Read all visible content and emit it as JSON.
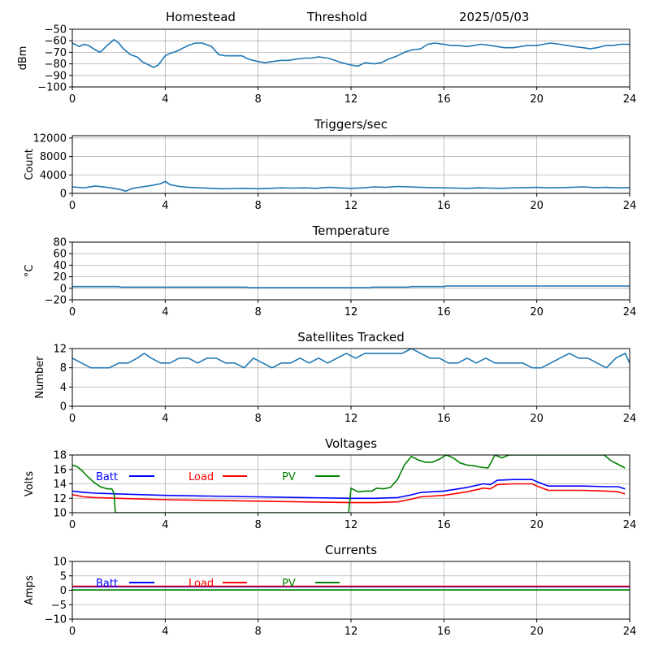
{
  "header": {
    "site": "Homestead",
    "mode": "Threshold",
    "date": "2025/05/03"
  },
  "colors": {
    "series_default": "#1f77b4",
    "batt": "#0000ff",
    "load": "#ff0000",
    "pv": "#008000",
    "grid": "#b0b0b0"
  },
  "chart_data": [
    {
      "type": "line",
      "title": "",
      "xlabel": "",
      "ylabel": "dBm",
      "xlim": [
        0,
        24
      ],
      "ylim": [
        -100,
        -50
      ],
      "xticks": [
        0,
        4,
        8,
        12,
        16,
        20,
        24
      ],
      "yticks": [
        -100,
        -90,
        -80,
        -70,
        -60,
        -50
      ],
      "grid": true,
      "series": [
        {
          "color": "#1f77b4",
          "x": [
            0,
            0.3,
            0.5,
            0.7,
            1.0,
            1.2,
            1.5,
            1.8,
            2.0,
            2.2,
            2.5,
            2.8,
            3.0,
            3.2,
            3.5,
            3.7,
            4.0,
            4.2,
            4.5,
            4.8,
            5.0,
            5.3,
            5.6,
            6.0,
            6.3,
            6.6,
            7.0,
            7.3,
            7.6,
            8.0,
            8.3,
            8.6,
            9.0,
            9.3,
            9.6,
            10.0,
            10.3,
            10.6,
            11.0,
            11.3,
            11.6,
            12.0,
            12.3,
            12.6,
            13.0,
            13.3,
            13.6,
            14.0,
            14.3,
            14.6,
            15.0,
            15.3,
            15.6,
            16.0,
            16.3,
            16.6,
            17.0,
            17.3,
            17.6,
            18.0,
            18.3,
            18.6,
            19.0,
            19.3,
            19.6,
            20.0,
            20.3,
            20.6,
            21.0,
            21.3,
            21.6,
            22.0,
            22.3,
            22.6,
            23.0,
            23.3,
            23.6,
            24.0
          ],
          "y": [
            -62,
            -65,
            -63,
            -64,
            -68,
            -70,
            -64,
            -59,
            -62,
            -67,
            -72,
            -74,
            -78,
            -80,
            -83,
            -81,
            -73,
            -71,
            -69,
            -66,
            -64,
            -62,
            -62,
            -65,
            -72,
            -73,
            -73,
            -73,
            -76,
            -78,
            -79,
            -78,
            -77,
            -77,
            -76,
            -75,
            -75,
            -74,
            -75,
            -77,
            -79,
            -81,
            -82,
            -79,
            -80,
            -79,
            -76,
            -73,
            -70,
            -68,
            -67,
            -63,
            -62,
            -63,
            -64,
            -64,
            -65,
            -64,
            -63,
            -64,
            -65,
            -66,
            -66,
            -65,
            -64,
            -64,
            -63,
            -62,
            -63,
            -64,
            -65,
            -66,
            -67,
            -66,
            -64,
            -64,
            -63,
            -63
          ]
        }
      ]
    },
    {
      "type": "line",
      "title": "Triggers/sec",
      "xlabel": "",
      "ylabel": "Count",
      "xlim": [
        0,
        24
      ],
      "ylim": [
        0,
        12500
      ],
      "xticks": [
        0,
        4,
        8,
        12,
        16,
        20,
        24
      ],
      "yticks": [
        0,
        4000,
        8000,
        12000
      ],
      "grid": true,
      "series": [
        {
          "color": "#1f77b4",
          "x": [
            0,
            0.5,
            1.0,
            1.5,
            2.0,
            2.3,
            2.6,
            3.0,
            3.4,
            3.8,
            4.0,
            4.2,
            4.6,
            5.0,
            5.5,
            6.0,
            6.5,
            7.0,
            7.5,
            8.0,
            8.5,
            9.0,
            9.5,
            10.0,
            10.5,
            11.0,
            11.5,
            12.0,
            12.5,
            13.0,
            13.5,
            14.0,
            14.5,
            15.0,
            15.5,
            16.0,
            16.5,
            17.0,
            17.5,
            18.0,
            18.5,
            19.0,
            19.5,
            20.0,
            20.5,
            21.0,
            21.5,
            22.0,
            22.5,
            23.0,
            23.5,
            24.0
          ],
          "y": [
            1400,
            1200,
            1600,
            1300,
            900,
            500,
            1100,
            1400,
            1700,
            2100,
            2600,
            1900,
            1500,
            1300,
            1200,
            1100,
            1000,
            1050,
            1100,
            1000,
            1100,
            1200,
            1150,
            1200,
            1100,
            1300,
            1200,
            1100,
            1200,
            1400,
            1300,
            1500,
            1400,
            1300,
            1250,
            1200,
            1150,
            1100,
            1200,
            1150,
            1100,
            1200,
            1250,
            1300,
            1200,
            1250,
            1300,
            1400,
            1250,
            1300,
            1200,
            1250
          ]
        }
      ]
    },
    {
      "type": "line",
      "title": "Temperature",
      "xlabel": "",
      "ylabel": "°C",
      "xlim": [
        0,
        24
      ],
      "ylim": [
        -20,
        80
      ],
      "xticks": [
        0,
        4,
        8,
        12,
        16,
        20,
        24
      ],
      "yticks": [
        -20,
        0,
        20,
        40,
        60,
        80
      ],
      "grid": true,
      "series": [
        {
          "color": "#1f77b4",
          "x": [
            0,
            2.0,
            2.1,
            7.5,
            7.6,
            12.8,
            12.9,
            14.5,
            14.6,
            16.0,
            16.1,
            24.0
          ],
          "y": [
            3,
            3,
            2,
            2,
            1,
            1,
            2,
            2,
            3,
            3,
            4,
            4
          ]
        }
      ]
    },
    {
      "type": "line",
      "title": "Satellites Tracked",
      "xlabel": "",
      "ylabel": "Number",
      "xlim": [
        0,
        24
      ],
      "ylim": [
        0,
        12
      ],
      "xticks": [
        0,
        4,
        8,
        12,
        16,
        20,
        24
      ],
      "yticks": [
        0,
        4,
        8,
        12
      ],
      "grid": true,
      "series": [
        {
          "color": "#1f77b4",
          "x": [
            0,
            0.4,
            0.8,
            1.2,
            1.6,
            2.0,
            2.4,
            2.8,
            3.1,
            3.4,
            3.8,
            4.2,
            4.6,
            5.0,
            5.4,
            5.8,
            6.2,
            6.6,
            7.0,
            7.4,
            7.8,
            8.2,
            8.6,
            9.0,
            9.4,
            9.8,
            10.2,
            10.6,
            11.0,
            11.4,
            11.8,
            12.2,
            12.6,
            13.0,
            13.4,
            13.8,
            14.2,
            14.6,
            15.0,
            15.4,
            15.8,
            16.2,
            16.6,
            17.0,
            17.4,
            17.8,
            18.2,
            18.6,
            19.0,
            19.4,
            19.8,
            20.2,
            20.6,
            21.0,
            21.4,
            21.8,
            22.2,
            22.6,
            23.0,
            23.4,
            23.8,
            24.0
          ],
          "y": [
            10,
            9,
            8,
            8,
            8,
            9,
            9,
            10,
            11,
            10,
            9,
            9,
            10,
            10,
            9,
            10,
            10,
            9,
            9,
            8,
            10,
            9,
            8,
            9,
            9,
            10,
            9,
            10,
            9,
            10,
            11,
            10,
            11,
            11,
            11,
            11,
            11,
            12,
            11,
            10,
            10,
            9,
            9,
            10,
            9,
            10,
            9,
            9,
            9,
            9,
            8,
            8,
            9,
            10,
            11,
            10,
            10,
            9,
            8,
            10,
            11,
            9
          ]
        }
      ]
    },
    {
      "type": "line",
      "title": "Voltages",
      "xlabel": "",
      "ylabel": "Volts",
      "xlim": [
        0,
        24
      ],
      "ylim": [
        10,
        18
      ],
      "xticks": [
        0,
        4,
        8,
        12,
        16,
        20,
        24
      ],
      "yticks": [
        10,
        12,
        14,
        16,
        18
      ],
      "grid": true,
      "legend": "top-left, inline",
      "series": [
        {
          "name": "Batt",
          "color": "#0000ff",
          "x": [
            0,
            0.5,
            1.0,
            2.0,
            4.0,
            8.0,
            12.0,
            13.0,
            14.0,
            14.5,
            15.0,
            16.0,
            17.0,
            17.7,
            18.0,
            18.3,
            19.0,
            19.8,
            20.0,
            20.5,
            22.0,
            23.0,
            23.5,
            23.8
          ],
          "y": [
            13.0,
            12.8,
            12.7,
            12.6,
            12.4,
            12.2,
            12.0,
            12.0,
            12.1,
            12.4,
            12.8,
            13.0,
            13.5,
            14.0,
            13.9,
            14.5,
            14.6,
            14.6,
            14.3,
            13.7,
            13.7,
            13.6,
            13.6,
            13.3
          ]
        },
        {
          "name": "Load",
          "color": "#ff0000",
          "x": [
            0,
            0.5,
            1.0,
            2.0,
            4.0,
            8.0,
            12.0,
            13.0,
            14.0,
            14.5,
            15.0,
            16.0,
            17.0,
            17.7,
            18.0,
            18.3,
            19.0,
            19.8,
            20.0,
            20.5,
            22.0,
            23.0,
            23.5,
            23.8
          ],
          "y": [
            12.5,
            12.2,
            12.1,
            12.0,
            11.8,
            11.6,
            11.4,
            11.4,
            11.5,
            11.8,
            12.2,
            12.4,
            12.9,
            13.4,
            13.3,
            13.9,
            14.0,
            14.0,
            13.7,
            13.1,
            13.1,
            13.0,
            12.9,
            12.6
          ]
        },
        {
          "name": "PV",
          "color": "#008000",
          "x": [
            0,
            0.2,
            0.4,
            0.6,
            0.9,
            1.2,
            1.5,
            1.7,
            1.8,
            1.85,
            11.9,
            12.0,
            12.3,
            12.6,
            12.9,
            13.1,
            13.4,
            13.7,
            14.0,
            14.3,
            14.6,
            14.9,
            15.2,
            15.5,
            15.8,
            16.1,
            16.4,
            16.7,
            17.0,
            17.3,
            17.6,
            17.9,
            18.2,
            18.5,
            18.8,
            22.9,
            23.2,
            23.5,
            23.8
          ],
          "y": [
            16.6,
            16.4,
            15.9,
            15.2,
            14.3,
            13.6,
            13.3,
            13.3,
            12.7,
            10.0,
            10.0,
            13.4,
            12.9,
            13.0,
            13.0,
            13.4,
            13.3,
            13.5,
            14.6,
            16.6,
            17.8,
            17.3,
            17.0,
            17.0,
            17.4,
            18.0,
            17.6,
            16.9,
            16.6,
            16.5,
            16.3,
            16.2,
            18.0,
            17.6,
            18.0,
            18.0,
            17.2,
            16.7,
            16.2
          ]
        }
      ]
    },
    {
      "type": "line",
      "title": "Currents",
      "xlabel": "",
      "ylabel": "Amps",
      "xlim": [
        0,
        24
      ],
      "ylim": [
        -10,
        10
      ],
      "xticks": [
        0,
        4,
        8,
        12,
        16,
        20,
        24
      ],
      "yticks": [
        -10,
        -5,
        0,
        5,
        10
      ],
      "grid": true,
      "legend": "top-left, inline",
      "series": [
        {
          "name": "Batt",
          "color": "#0000ff",
          "x": [
            0,
            24
          ],
          "y": [
            1.2,
            1.2
          ]
        },
        {
          "name": "Load",
          "color": "#ff0000",
          "x": [
            0,
            24
          ],
          "y": [
            1.4,
            1.4
          ]
        },
        {
          "name": "PV",
          "color": "#008000",
          "x": [
            0,
            24
          ],
          "y": [
            0.1,
            0.1
          ]
        }
      ]
    }
  ]
}
